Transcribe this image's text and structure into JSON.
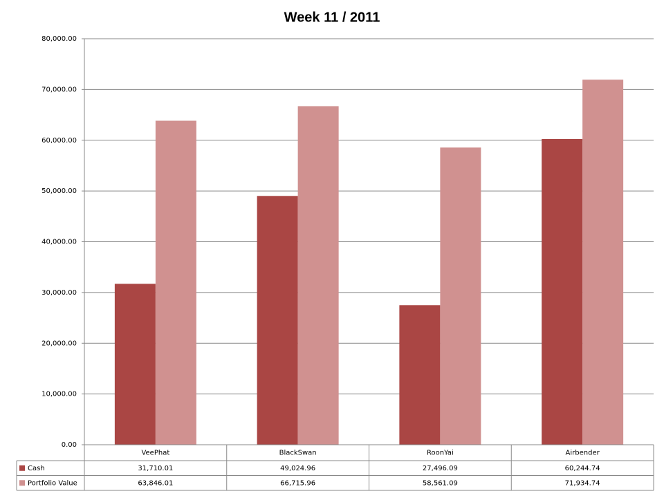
{
  "chart_data": {
    "type": "bar",
    "title": "Week 11 / 2011",
    "categories": [
      "VeePhat",
      "BlackSwan",
      "RoonYai",
      "Airbender"
    ],
    "series": [
      {
        "name": "Cash",
        "color": "#aa4644",
        "values": [
          31710.01,
          49024.96,
          27496.09,
          60244.74
        ],
        "value_labels": [
          "31,710.01",
          "49,024.96",
          "27,496.09",
          "60,244.74"
        ]
      },
      {
        "name": "Portfolio Value",
        "color": "#d09190",
        "values": [
          63846.01,
          66715.96,
          58561.09,
          71934.74
        ],
        "value_labels": [
          "63,846.01",
          "66,715.96",
          "58,561.09",
          "71,934.74"
        ]
      }
    ],
    "ylim": [
      0,
      80000
    ],
    "yticks": [
      {
        "value": 0,
        "label": "0.00"
      },
      {
        "value": 10000,
        "label": "10,000.00"
      },
      {
        "value": 20000,
        "label": "20,000.00"
      },
      {
        "value": 30000,
        "label": "30,000.00"
      },
      {
        "value": 40000,
        "label": "40,000.00"
      },
      {
        "value": 50000,
        "label": "50,000.00"
      },
      {
        "value": 60000,
        "label": "60,000.00"
      },
      {
        "value": 70000,
        "label": "70,000.00"
      },
      {
        "value": 80000,
        "label": "80,000.00"
      }
    ],
    "grid": true,
    "legend": "table"
  }
}
